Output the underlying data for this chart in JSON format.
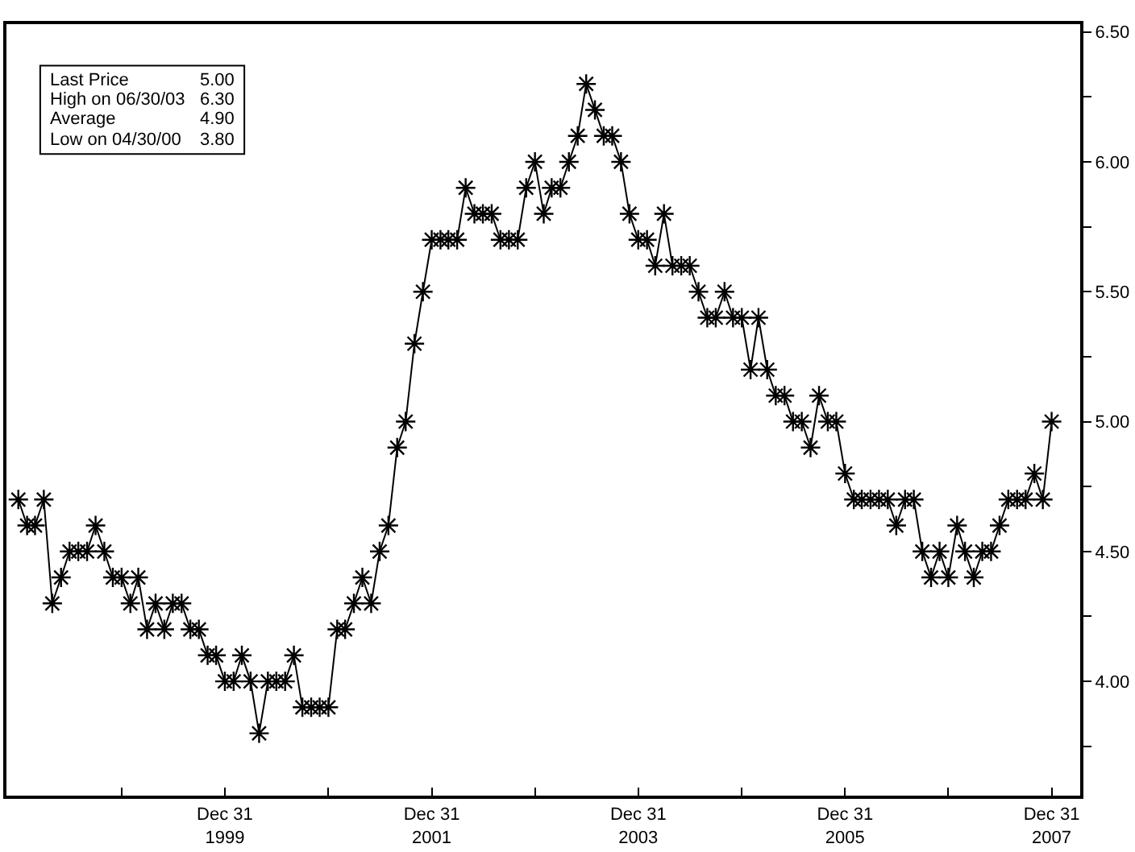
{
  "chart_data": {
    "type": "line",
    "annotations": [
      "Last Price",
      "5.00",
      "High on 06/30/03",
      "6.30",
      "Average",
      "4.90",
      "Low on 04/30/00",
      "3.80"
    ],
    "x": [
      "1997-12-31",
      "1998-01-31",
      "1998-02-28",
      "1998-03-31",
      "1998-04-30",
      "1998-05-31",
      "1998-06-30",
      "1998-07-31",
      "1998-08-31",
      "1998-09-30",
      "1998-10-31",
      "1998-11-30",
      "1998-12-31",
      "1999-01-31",
      "1999-02-28",
      "1999-03-31",
      "1999-04-30",
      "1999-05-31",
      "1999-06-30",
      "1999-07-31",
      "1999-08-31",
      "1999-09-30",
      "1999-10-31",
      "1999-11-30",
      "1999-12-31",
      "2000-01-31",
      "2000-02-29",
      "2000-03-31",
      "2000-04-30",
      "2000-05-31",
      "2000-06-30",
      "2000-07-31",
      "2000-08-31",
      "2000-09-30",
      "2000-10-31",
      "2000-11-30",
      "2000-12-31",
      "2001-01-31",
      "2001-02-28",
      "2001-03-31",
      "2001-04-30",
      "2001-05-31",
      "2001-06-30",
      "2001-07-31",
      "2001-08-31",
      "2001-09-30",
      "2001-10-31",
      "2001-11-30",
      "2001-12-31",
      "2002-01-31",
      "2002-02-28",
      "2002-03-31",
      "2002-04-30",
      "2002-05-31",
      "2002-06-30",
      "2002-07-31",
      "2002-08-31",
      "2002-09-30",
      "2002-10-31",
      "2002-11-30",
      "2002-12-31",
      "2003-01-31",
      "2003-02-28",
      "2003-03-31",
      "2003-04-30",
      "2003-05-31",
      "2003-06-30",
      "2003-07-31",
      "2003-08-31",
      "2003-09-30",
      "2003-10-31",
      "2003-11-30",
      "2003-12-31",
      "2004-01-31",
      "2004-02-29",
      "2004-03-31",
      "2004-04-30",
      "2004-05-31",
      "2004-06-30",
      "2004-07-31",
      "2004-08-31",
      "2004-09-30",
      "2004-10-31",
      "2004-11-30",
      "2004-12-31",
      "2005-01-31",
      "2005-02-28",
      "2005-03-31",
      "2005-04-30",
      "2005-05-31",
      "2005-06-30",
      "2005-07-31",
      "2005-08-31",
      "2005-09-30",
      "2005-10-31",
      "2005-11-30",
      "2005-12-31",
      "2006-01-31",
      "2006-02-28",
      "2006-03-31",
      "2006-04-30",
      "2006-05-31",
      "2006-06-30",
      "2006-07-31",
      "2006-08-31",
      "2006-09-30",
      "2006-10-31",
      "2006-11-30",
      "2006-12-31",
      "2007-01-31",
      "2007-02-28",
      "2007-03-31",
      "2007-04-30",
      "2007-05-31",
      "2007-06-30",
      "2007-07-31",
      "2007-08-31",
      "2007-09-30",
      "2007-10-31",
      "2007-11-30",
      "2007-12-31"
    ],
    "series": [
      {
        "color": "#000000",
        "values": [
          4.7,
          4.6,
          4.6,
          4.7,
          4.3,
          4.4,
          4.5,
          4.5,
          4.5,
          4.6,
          4.5,
          4.4,
          4.4,
          4.3,
          4.4,
          4.2,
          4.3,
          4.2,
          4.3,
          4.3,
          4.2,
          4.2,
          4.1,
          4.1,
          4.0,
          4.0,
          4.1,
          4.0,
          3.8,
          4.0,
          4.0,
          4.0,
          4.1,
          3.9,
          3.9,
          3.9,
          3.9,
          4.2,
          4.2,
          4.3,
          4.4,
          4.3,
          4.5,
          4.6,
          4.9,
          5.0,
          5.3,
          5.5,
          5.7,
          5.7,
          5.7,
          5.7,
          5.9,
          5.8,
          5.8,
          5.8,
          5.7,
          5.7,
          5.7,
          5.9,
          6.0,
          5.8,
          5.9,
          5.9,
          6.0,
          6.1,
          6.3,
          6.2,
          6.1,
          6.1,
          6.0,
          5.8,
          5.7,
          5.7,
          5.6,
          5.8,
          5.6,
          5.6,
          5.6,
          5.5,
          5.4,
          5.4,
          5.5,
          5.4,
          5.4,
          5.2,
          5.4,
          5.2,
          5.1,
          5.1,
          5.0,
          5.0,
          4.9,
          5.1,
          5.0,
          5.0,
          4.8,
          4.7,
          4.7,
          4.7,
          4.7,
          4.7,
          4.6,
          4.7,
          4.7,
          4.5,
          4.4,
          4.5,
          4.4,
          4.6,
          4.5,
          4.4,
          4.5,
          4.5,
          4.6,
          4.7,
          4.7,
          4.7,
          4.8,
          4.7,
          5.0
        ]
      }
    ],
    "xlim": [
      "1997-11-19",
      "2008-04-10"
    ],
    "xticks": [
      {
        "value": "1998-12-31",
        "label": null
      },
      {
        "value": "1999-12-31",
        "label": "Dec 31\n1999"
      },
      {
        "value": "2000-12-31",
        "label": null
      },
      {
        "value": "2001-12-31",
        "label": "Dec 31\n2001"
      },
      {
        "value": "2002-12-31",
        "label": null
      },
      {
        "value": "2003-12-31",
        "label": "Dec 31\n2003"
      },
      {
        "value": "2004-12-31",
        "label": null
      },
      {
        "value": "2005-12-31",
        "label": "Dec 31\n2005"
      },
      {
        "value": "2006-12-31",
        "label": null
      },
      {
        "value": "2007-12-31",
        "label": "Dec 31\n2007"
      }
    ],
    "ylim": [
      3.56,
      6.53
    ],
    "yticks": [
      {
        "value": 3.75,
        "label": null
      },
      {
        "value": 4.0,
        "label": "4.00"
      },
      {
        "value": 4.25,
        "label": null
      },
      {
        "value": 4.5,
        "label": "4.50"
      },
      {
        "value": 4.75,
        "label": null
      },
      {
        "value": 5.0,
        "label": "5.00"
      },
      {
        "value": 5.25,
        "label": null
      },
      {
        "value": 5.5,
        "label": "5.50"
      },
      {
        "value": 5.75,
        "label": null
      },
      {
        "value": 6.0,
        "label": "6.00"
      },
      {
        "value": 6.25,
        "label": null
      },
      {
        "value": 6.5,
        "label": "6.50"
      }
    ],
    "marker": "cross",
    "line_style": "solid"
  }
}
